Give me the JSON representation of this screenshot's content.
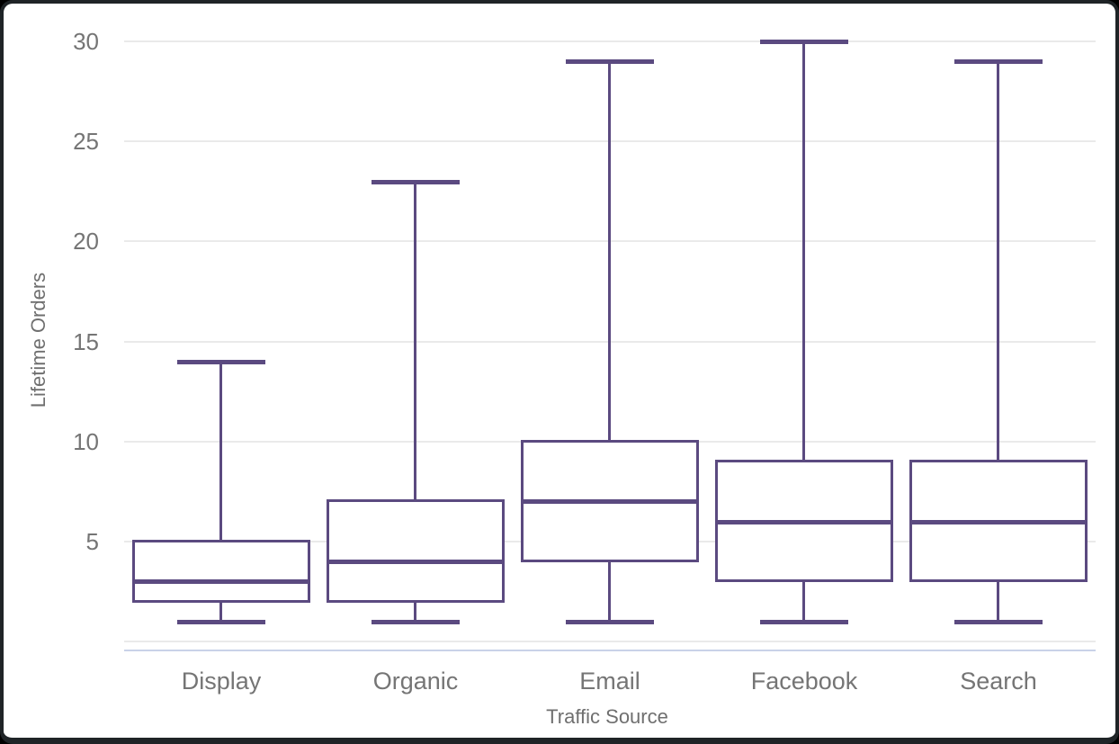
{
  "window": {
    "background": "#ffffff",
    "frame_border_color": "#1f2427"
  },
  "chart_data": {
    "type": "boxplot",
    "title": "",
    "xlabel": "Traffic Source",
    "ylabel": "Lifetime Orders",
    "categories": [
      "Display",
      "Organic",
      "Email",
      "Facebook",
      "Search"
    ],
    "series": [
      {
        "name": "Display",
        "min": 1,
        "q1": 2,
        "median": 3,
        "q3": 5,
        "max": 14
      },
      {
        "name": "Organic",
        "min": 1,
        "q1": 2,
        "median": 4,
        "q3": 7,
        "max": 23
      },
      {
        "name": "Email",
        "min": 1,
        "q1": 4,
        "median": 7,
        "q3": 10,
        "max": 29
      },
      {
        "name": "Facebook",
        "min": 1,
        "q1": 3,
        "median": 6,
        "q3": 9,
        "max": 30
      },
      {
        "name": "Search",
        "min": 1,
        "q1": 3,
        "median": 6,
        "q3": 9,
        "max": 29
      }
    ],
    "y_ticks": [
      5,
      10,
      15,
      20,
      25,
      30
    ],
    "ylim": [
      0,
      30
    ],
    "grid": true,
    "legend": "none",
    "colors": {
      "box_stroke": "#5b4a80",
      "box_fill": "#ffffff",
      "gridline": "#eaeaea",
      "axis_line": "#c9d2e8",
      "tick_label": "#757575",
      "axis_title": "#6f6f6f"
    }
  }
}
